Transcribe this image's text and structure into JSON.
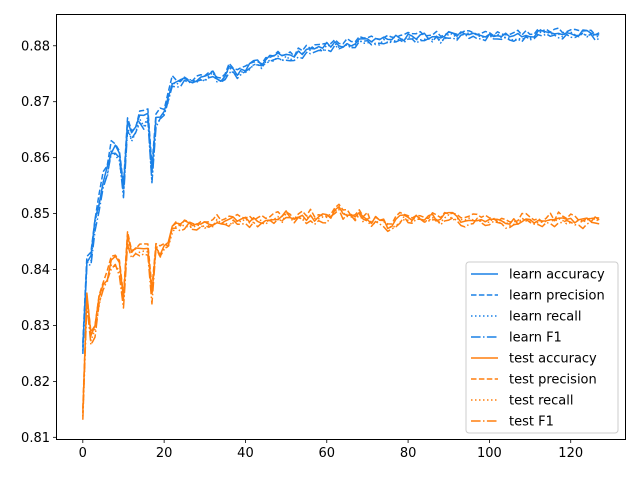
{
  "chart_data": {
    "type": "line",
    "title": "",
    "xlabel": "",
    "ylabel": "",
    "xlim": [
      -6.35,
      133.35
    ],
    "ylim": [
      0.8097,
      0.8855
    ],
    "x_ticks": [
      0,
      20,
      40,
      60,
      80,
      100,
      120
    ],
    "y_ticks": [
      0.81,
      0.82,
      0.83,
      0.84,
      0.85,
      0.86,
      0.87,
      0.88
    ],
    "y_tick_labels": [
      "0.81",
      "0.82",
      "0.83",
      "0.84",
      "0.85",
      "0.86",
      "0.87",
      "0.88"
    ],
    "grid": false,
    "legend_position": "lower-right",
    "anchors": {
      "learn": [
        [
          0,
          0.826
        ],
        [
          1,
          0.842
        ],
        [
          2,
          0.843
        ],
        [
          3,
          0.849
        ],
        [
          4,
          0.852
        ],
        [
          5,
          0.856
        ],
        [
          6,
          0.858
        ],
        [
          7,
          0.862
        ],
        [
          8,
          0.861
        ],
        [
          9,
          0.861
        ],
        [
          10,
          0.854
        ],
        [
          11,
          0.867
        ],
        [
          12,
          0.864
        ],
        [
          13,
          0.865
        ],
        [
          14,
          0.867
        ],
        [
          15,
          0.867
        ],
        [
          16,
          0.868
        ],
        [
          17,
          0.857
        ],
        [
          18,
          0.867
        ],
        [
          19,
          0.868
        ],
        [
          20,
          0.868
        ],
        [
          21,
          0.871
        ],
        [
          22,
          0.873
        ],
        [
          23,
          0.873
        ],
        [
          24,
          0.874
        ],
        [
          26,
          0.874
        ],
        [
          28,
          0.874
        ],
        [
          30,
          0.874
        ],
        [
          32,
          0.875
        ],
        [
          34,
          0.874
        ],
        [
          36,
          0.876
        ],
        [
          38,
          0.875
        ],
        [
          40,
          0.876
        ],
        [
          42,
          0.877
        ],
        [
          44,
          0.877
        ],
        [
          46,
          0.878
        ],
        [
          50,
          0.878
        ],
        [
          55,
          0.879
        ],
        [
          60,
          0.88
        ],
        [
          65,
          0.8805
        ],
        [
          70,
          0.881
        ],
        [
          75,
          0.881
        ],
        [
          80,
          0.8815
        ],
        [
          85,
          0.8815
        ],
        [
          90,
          0.882
        ],
        [
          95,
          0.882
        ],
        [
          100,
          0.882
        ],
        [
          105,
          0.882
        ],
        [
          110,
          0.882
        ],
        [
          115,
          0.8825
        ],
        [
          120,
          0.8825
        ],
        [
          127,
          0.8822
        ]
      ],
      "test": [
        [
          0,
          0.814
        ],
        [
          1,
          0.835
        ],
        [
          2,
          0.828
        ],
        [
          3,
          0.83
        ],
        [
          4,
          0.835
        ],
        [
          5,
          0.837
        ],
        [
          6,
          0.838
        ],
        [
          7,
          0.841
        ],
        [
          8,
          0.842
        ],
        [
          9,
          0.841
        ],
        [
          10,
          0.835
        ],
        [
          11,
          0.845
        ],
        [
          12,
          0.843
        ],
        [
          13,
          0.843
        ],
        [
          14,
          0.844
        ],
        [
          15,
          0.844
        ],
        [
          16,
          0.844
        ],
        [
          17,
          0.836
        ],
        [
          18,
          0.844
        ],
        [
          19,
          0.843
        ],
        [
          20,
          0.844
        ],
        [
          21,
          0.845
        ],
        [
          22,
          0.847
        ],
        [
          24,
          0.848
        ],
        [
          26,
          0.848
        ],
        [
          28,
          0.848
        ],
        [
          30,
          0.848
        ],
        [
          35,
          0.849
        ],
        [
          40,
          0.849
        ],
        [
          45,
          0.849
        ],
        [
          50,
          0.8495
        ],
        [
          55,
          0.8495
        ],
        [
          60,
          0.8495
        ],
        [
          63,
          0.851
        ],
        [
          65,
          0.85
        ],
        [
          70,
          0.849
        ],
        [
          75,
          0.848
        ],
        [
          80,
          0.8495
        ],
        [
          85,
          0.849
        ],
        [
          90,
          0.8495
        ],
        [
          95,
          0.849
        ],
        [
          100,
          0.849
        ],
        [
          105,
          0.8485
        ],
        [
          110,
          0.849
        ],
        [
          115,
          0.849
        ],
        [
          120,
          0.849
        ],
        [
          127,
          0.8487
        ]
      ]
    },
    "series": [
      {
        "name": "learn accuracy",
        "group": "learn",
        "metric": "accuracy",
        "color": "#1a80e6",
        "dash": "solid"
      },
      {
        "name": "learn precision",
        "group": "learn",
        "metric": "precision",
        "color": "#1a80e6",
        "dash": "dashed"
      },
      {
        "name": "learn recall",
        "group": "learn",
        "metric": "recall",
        "color": "#1a80e6",
        "dash": "dotted"
      },
      {
        "name": "learn F1",
        "group": "learn",
        "metric": "f1",
        "color": "#1a80e6",
        "dash": "dashdot"
      },
      {
        "name": "test accuracy",
        "group": "test",
        "metric": "accuracy",
        "color": "#ff7f0e",
        "dash": "solid"
      },
      {
        "name": "test precision",
        "group": "test",
        "metric": "precision",
        "color": "#ff7f0e",
        "dash": "dashed"
      },
      {
        "name": "test recall",
        "group": "test",
        "metric": "recall",
        "color": "#ff7f0e",
        "dash": "dotted"
      },
      {
        "name": "test F1",
        "group": "test",
        "metric": "f1",
        "color": "#ff7f0e",
        "dash": "dashdot"
      }
    ]
  }
}
